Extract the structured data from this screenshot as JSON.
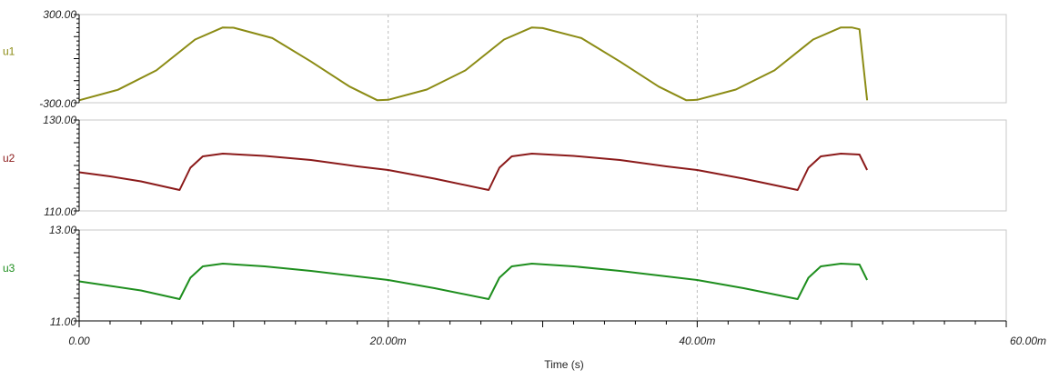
{
  "chart_data": {
    "type": "line",
    "xlabel": "Time (s)",
    "x_range": [
      0,
      60
    ],
    "x_unit_note": "milliseconds",
    "x_ticks": [
      {
        "value": 0,
        "label": "0.00"
      },
      {
        "value": 20,
        "label": "20.00m"
      },
      {
        "value": 40,
        "label": "40.00m"
      },
      {
        "value": 60,
        "label": "60.00m"
      }
    ],
    "grid": "vertical dashed at 20.00m and 40.00m",
    "panels": [
      {
        "name": "u1",
        "color": "#8B8B14",
        "ylim": [
          -300,
          300
        ],
        "y_tick_labels": {
          "top": "300.00",
          "bottom": "-300.00"
        },
        "x": [
          0,
          2.5,
          5,
          7.5,
          9.3,
          10,
          12.5,
          15,
          17.5,
          19.3,
          20,
          22.5,
          25,
          27.5,
          29.3,
          30,
          32.5,
          35,
          37.5,
          39.3,
          40,
          42.5,
          45,
          47.5,
          49.3,
          50,
          50.5,
          51
        ],
        "y": [
          -283,
          -212,
          -80,
          130,
          212,
          210,
          140,
          -20,
          -190,
          -283,
          -280,
          -210,
          -80,
          130,
          212,
          208,
          140,
          -20,
          -190,
          -283,
          -280,
          -210,
          -80,
          130,
          212,
          212,
          200,
          -283
        ]
      },
      {
        "name": "u2",
        "color": "#8B1A1A",
        "ylim": [
          110,
          130
        ],
        "y_tick_labels": {
          "top": "130.00",
          "bottom": "110.00"
        },
        "x": [
          0,
          2,
          4,
          6.5,
          7.2,
          8,
          9.3,
          12,
          15,
          18,
          20,
          23,
          26.5,
          27.2,
          28,
          29.3,
          32,
          35,
          38,
          40,
          43,
          46.5,
          47.2,
          48,
          49.3,
          50.5,
          51
        ],
        "y": [
          118.5,
          117.6,
          116.5,
          114.6,
          119.5,
          122,
          122.6,
          122.1,
          121.2,
          119.8,
          119,
          117.1,
          114.6,
          119.5,
          122,
          122.6,
          122.1,
          121.2,
          119.8,
          119,
          117.1,
          114.6,
          119.5,
          122,
          122.6,
          122.4,
          119
        ]
      },
      {
        "name": "u3",
        "color": "#1E8E1E",
        "ylim": [
          11,
          13
        ],
        "y_tick_labels": {
          "top": "13.00",
          "bottom": "11.00"
        },
        "x": [
          0,
          2,
          4,
          6.5,
          7.2,
          8,
          9.3,
          12,
          15,
          18,
          20,
          23,
          26.5,
          27.2,
          28,
          29.3,
          32,
          35,
          38,
          40,
          43,
          46.5,
          47.2,
          48,
          49.3,
          50.5,
          51
        ],
        "y": [
          11.87,
          11.77,
          11.67,
          11.48,
          11.95,
          12.2,
          12.26,
          12.2,
          12.1,
          11.98,
          11.9,
          11.72,
          11.48,
          11.95,
          12.2,
          12.26,
          12.2,
          12.1,
          11.98,
          11.9,
          11.72,
          11.48,
          11.95,
          12.2,
          12.26,
          12.24,
          11.9
        ]
      }
    ]
  }
}
